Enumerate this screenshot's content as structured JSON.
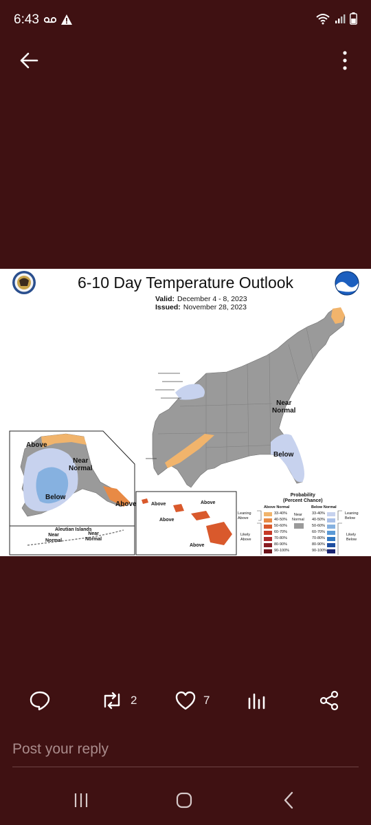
{
  "status_bar": {
    "time": "6:43"
  },
  "post": {
    "media": {
      "title": "6-10 Day Temperature Outlook",
      "valid_label": "Valid:",
      "valid_value": "December 4 - 8, 2023",
      "issued_label": "Issued:",
      "issued_value": "November 28, 2023",
      "noaa_logo_text": "NOAA",
      "conus_labels": {
        "near_normal": [
          "Near",
          "Normal"
        ],
        "below": "Below"
      },
      "alaska_labels": {
        "above_north": "Above",
        "near_normal": [
          "Near",
          "Normal"
        ],
        "below": "Below",
        "above_south": "Above"
      },
      "aleutian": {
        "title": "Aleutian Islands",
        "near_normal_west": [
          "Near",
          "Normal"
        ],
        "near_normal_east": [
          "Near",
          "Normal"
        ]
      },
      "hawaii_labels": [
        "Above",
        "Above",
        "Above",
        "Above"
      ],
      "legend": {
        "title": "Probability",
        "subtitle": "(Percent Chance)",
        "above_header": "Above Normal",
        "below_header": "Below Normal",
        "near_label": [
          "Near",
          "Normal"
        ],
        "leaning_above": [
          "Leaning",
          "Above"
        ],
        "likely_above": [
          "Likely",
          "Above"
        ],
        "leaning_below": [
          "Leaning",
          "Below"
        ],
        "likely_below": [
          "Likely",
          "Below"
        ],
        "ranges": [
          "33-40%",
          "40-50%",
          "50-60%",
          "60-70%",
          "70-80%",
          "80-90%",
          "90-100%"
        ],
        "above_colors": [
          "#f1b46c",
          "#e88a45",
          "#d9592c",
          "#c73a27",
          "#ad2a2a",
          "#8a1d22",
          "#6b1219"
        ],
        "below_colors": [
          "#c7d2ee",
          "#a9c0e8",
          "#86b1e0",
          "#5b9ad6",
          "#3278c2",
          "#1e4ea0",
          "#1a2572"
        ],
        "near_color": "#9a9a9a"
      }
    },
    "actions": {
      "replies": "",
      "reposts": "2",
      "likes": "7",
      "views": ""
    }
  },
  "reply": {
    "placeholder": "Post your reply"
  }
}
